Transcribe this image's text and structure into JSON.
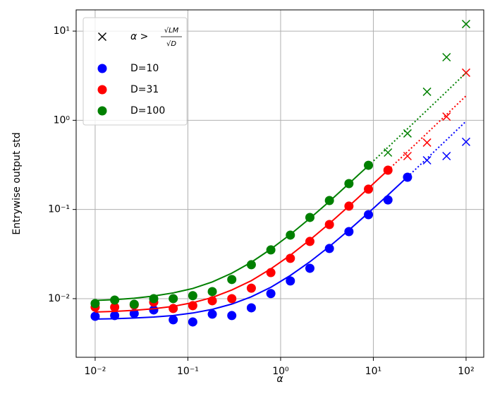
{
  "chart_data": {
    "type": "scatter",
    "x_label": "α",
    "y_label": "Entrywise output std",
    "xlog": true,
    "ylog": true,
    "grid": true,
    "legend": "upper left",
    "xlim": [
      0.00624,
      155
    ],
    "ylim": [
      0.0022,
      17.3
    ],
    "xticks": [
      {
        "value": 0.01,
        "label": "10⁻²"
      },
      {
        "value": 0.1,
        "label": "10⁻¹"
      },
      {
        "value": 1,
        "label": "10⁰"
      },
      {
        "value": 10,
        "label": "10¹"
      },
      {
        "value": 100,
        "label": "10²"
      }
    ],
    "yticks": [
      {
        "value": 0.01,
        "label": "10⁻²"
      },
      {
        "value": 0.1,
        "label": "10⁻¹"
      },
      {
        "value": 1,
        "label": "10⁰"
      },
      {
        "value": 10,
        "label": "10¹"
      }
    ],
    "cross_legend": {
      "text": "α >",
      "numerator": "√LM",
      "denominator": "√D",
      "color": "#000000"
    },
    "x": [
      0.01,
      0.01624,
      0.02637,
      0.04281,
      0.06952,
      0.1129,
      0.1833,
      0.2976,
      0.4833,
      0.7848,
      1.274,
      2.069,
      3.36,
      5.456,
      8.859,
      14.38,
      23.36,
      37.93,
      61.58,
      100
    ],
    "series": [
      {
        "name": "D=10",
        "color": "#0000ff",
        "values": [
          0.00634,
          0.00646,
          0.00682,
          0.00747,
          0.00579,
          0.00548,
          0.0067,
          0.00646,
          0.00789,
          0.0114,
          0.0158,
          0.0219,
          0.0365,
          0.0565,
          0.0875,
          0.128,
          0.23,
          null,
          null,
          null
        ],
        "crosses": [
          null,
          null,
          null,
          null,
          null,
          null,
          null,
          null,
          null,
          null,
          null,
          null,
          null,
          null,
          null,
          null,
          null,
          0.356,
          0.397,
          0.573
        ],
        "fit": [
          0.0059,
          0.00596,
          0.00606,
          0.00622,
          0.00647,
          0.0069,
          0.00758,
          0.00869,
          0.0105,
          0.0134,
          0.0182,
          0.0259,
          0.0384,
          0.0587,
          0.0917,
          0.145,
          0.232,
          null,
          null,
          null
        ],
        "fit_extrapolated": [
          null,
          null,
          null,
          null,
          null,
          null,
          null,
          null,
          null,
          null,
          null,
          null,
          null,
          null,
          null,
          null,
          0.232,
          0.374,
          0.603,
          0.976
        ]
      },
      {
        "name": "D=31",
        "color": "#ff0000",
        "values": [
          0.00803,
          0.00803,
          0.00849,
          0.00913,
          0.00775,
          0.00834,
          0.00947,
          0.01,
          0.0131,
          0.0196,
          0.0283,
          0.0438,
          0.0678,
          0.109,
          0.169,
          0.276,
          null,
          null,
          null,
          null
        ],
        "crosses": [
          null,
          null,
          null,
          null,
          null,
          null,
          null,
          null,
          null,
          null,
          null,
          null,
          null,
          null,
          null,
          null,
          0.397,
          0.562,
          1.1,
          3.42
        ],
        "fit": [
          0.00709,
          0.0072,
          0.00739,
          0.0077,
          0.0082,
          0.00901,
          0.0103,
          0.0125,
          0.0159,
          0.0216,
          0.0307,
          0.0456,
          0.0697,
          0.109,
          0.173,
          0.276,
          null,
          null,
          null,
          null
        ],
        "fit_extrapolated": [
          null,
          null,
          null,
          null,
          null,
          null,
          null,
          null,
          null,
          null,
          null,
          null,
          null,
          null,
          null,
          0.276,
          0.444,
          0.716,
          1.16,
          1.88
        ]
      },
      {
        "name": "D=100",
        "color": "#008000",
        "values": [
          0.00881,
          0.00964,
          0.00865,
          0.01,
          0.01,
          0.0108,
          0.012,
          0.0164,
          0.024,
          0.0352,
          0.0516,
          0.0814,
          0.126,
          0.195,
          0.313,
          null,
          null,
          null,
          null,
          null
        ],
        "crosses": [
          null,
          null,
          null,
          null,
          null,
          null,
          null,
          null,
          null,
          null,
          null,
          null,
          null,
          null,
          null,
          0.435,
          0.713,
          2.09,
          5.1,
          12.0
        ],
        "fit": [
          0.00954,
          0.00975,
          0.0101,
          0.0107,
          0.0116,
          0.013,
          0.0154,
          0.0193,
          0.0256,
          0.0359,
          0.0525,
          0.0795,
          0.123,
          0.195,
          0.31,
          null,
          null,
          null,
          null,
          null
        ],
        "fit_extrapolated": [
          null,
          null,
          null,
          null,
          null,
          null,
          null,
          null,
          null,
          null,
          null,
          null,
          null,
          null,
          0.31,
          0.498,
          0.803,
          1.3,
          2.1,
          3.41
        ]
      }
    ]
  }
}
